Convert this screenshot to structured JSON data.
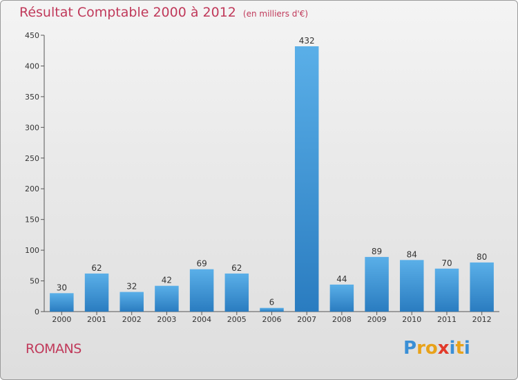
{
  "header": {
    "title": "Résultat Comptable 2000 à 2012",
    "subtitle": "(en milliers d'€)"
  },
  "footer": {
    "city": "ROMANS",
    "logo_text": "Proxiti",
    "logo_colors": [
      "#3a8fd6",
      "#e8a21a",
      "#e8a21a",
      "#e23a2a",
      "#3a8fd6",
      "#e8a21a",
      "#3a8fd6"
    ]
  },
  "chart_data": {
    "type": "bar",
    "title": "Résultat Comptable 2000 à 2012",
    "subtitle": "(en milliers d'€)",
    "categories": [
      "2000",
      "2001",
      "2002",
      "2003",
      "2004",
      "2005",
      "2006",
      "2007",
      "2008",
      "2009",
      "2010",
      "2011",
      "2012"
    ],
    "values": [
      30,
      62,
      32,
      42,
      69,
      62,
      6,
      432,
      44,
      89,
      84,
      70,
      80
    ],
    "ylim": [
      0,
      450
    ],
    "yticks": [
      0,
      50,
      100,
      150,
      200,
      250,
      300,
      350,
      400,
      450
    ],
    "grid": false,
    "legend": "none",
    "bar_color_top": "#5aafe8",
    "bar_color_bottom": "#2a7cc0"
  }
}
